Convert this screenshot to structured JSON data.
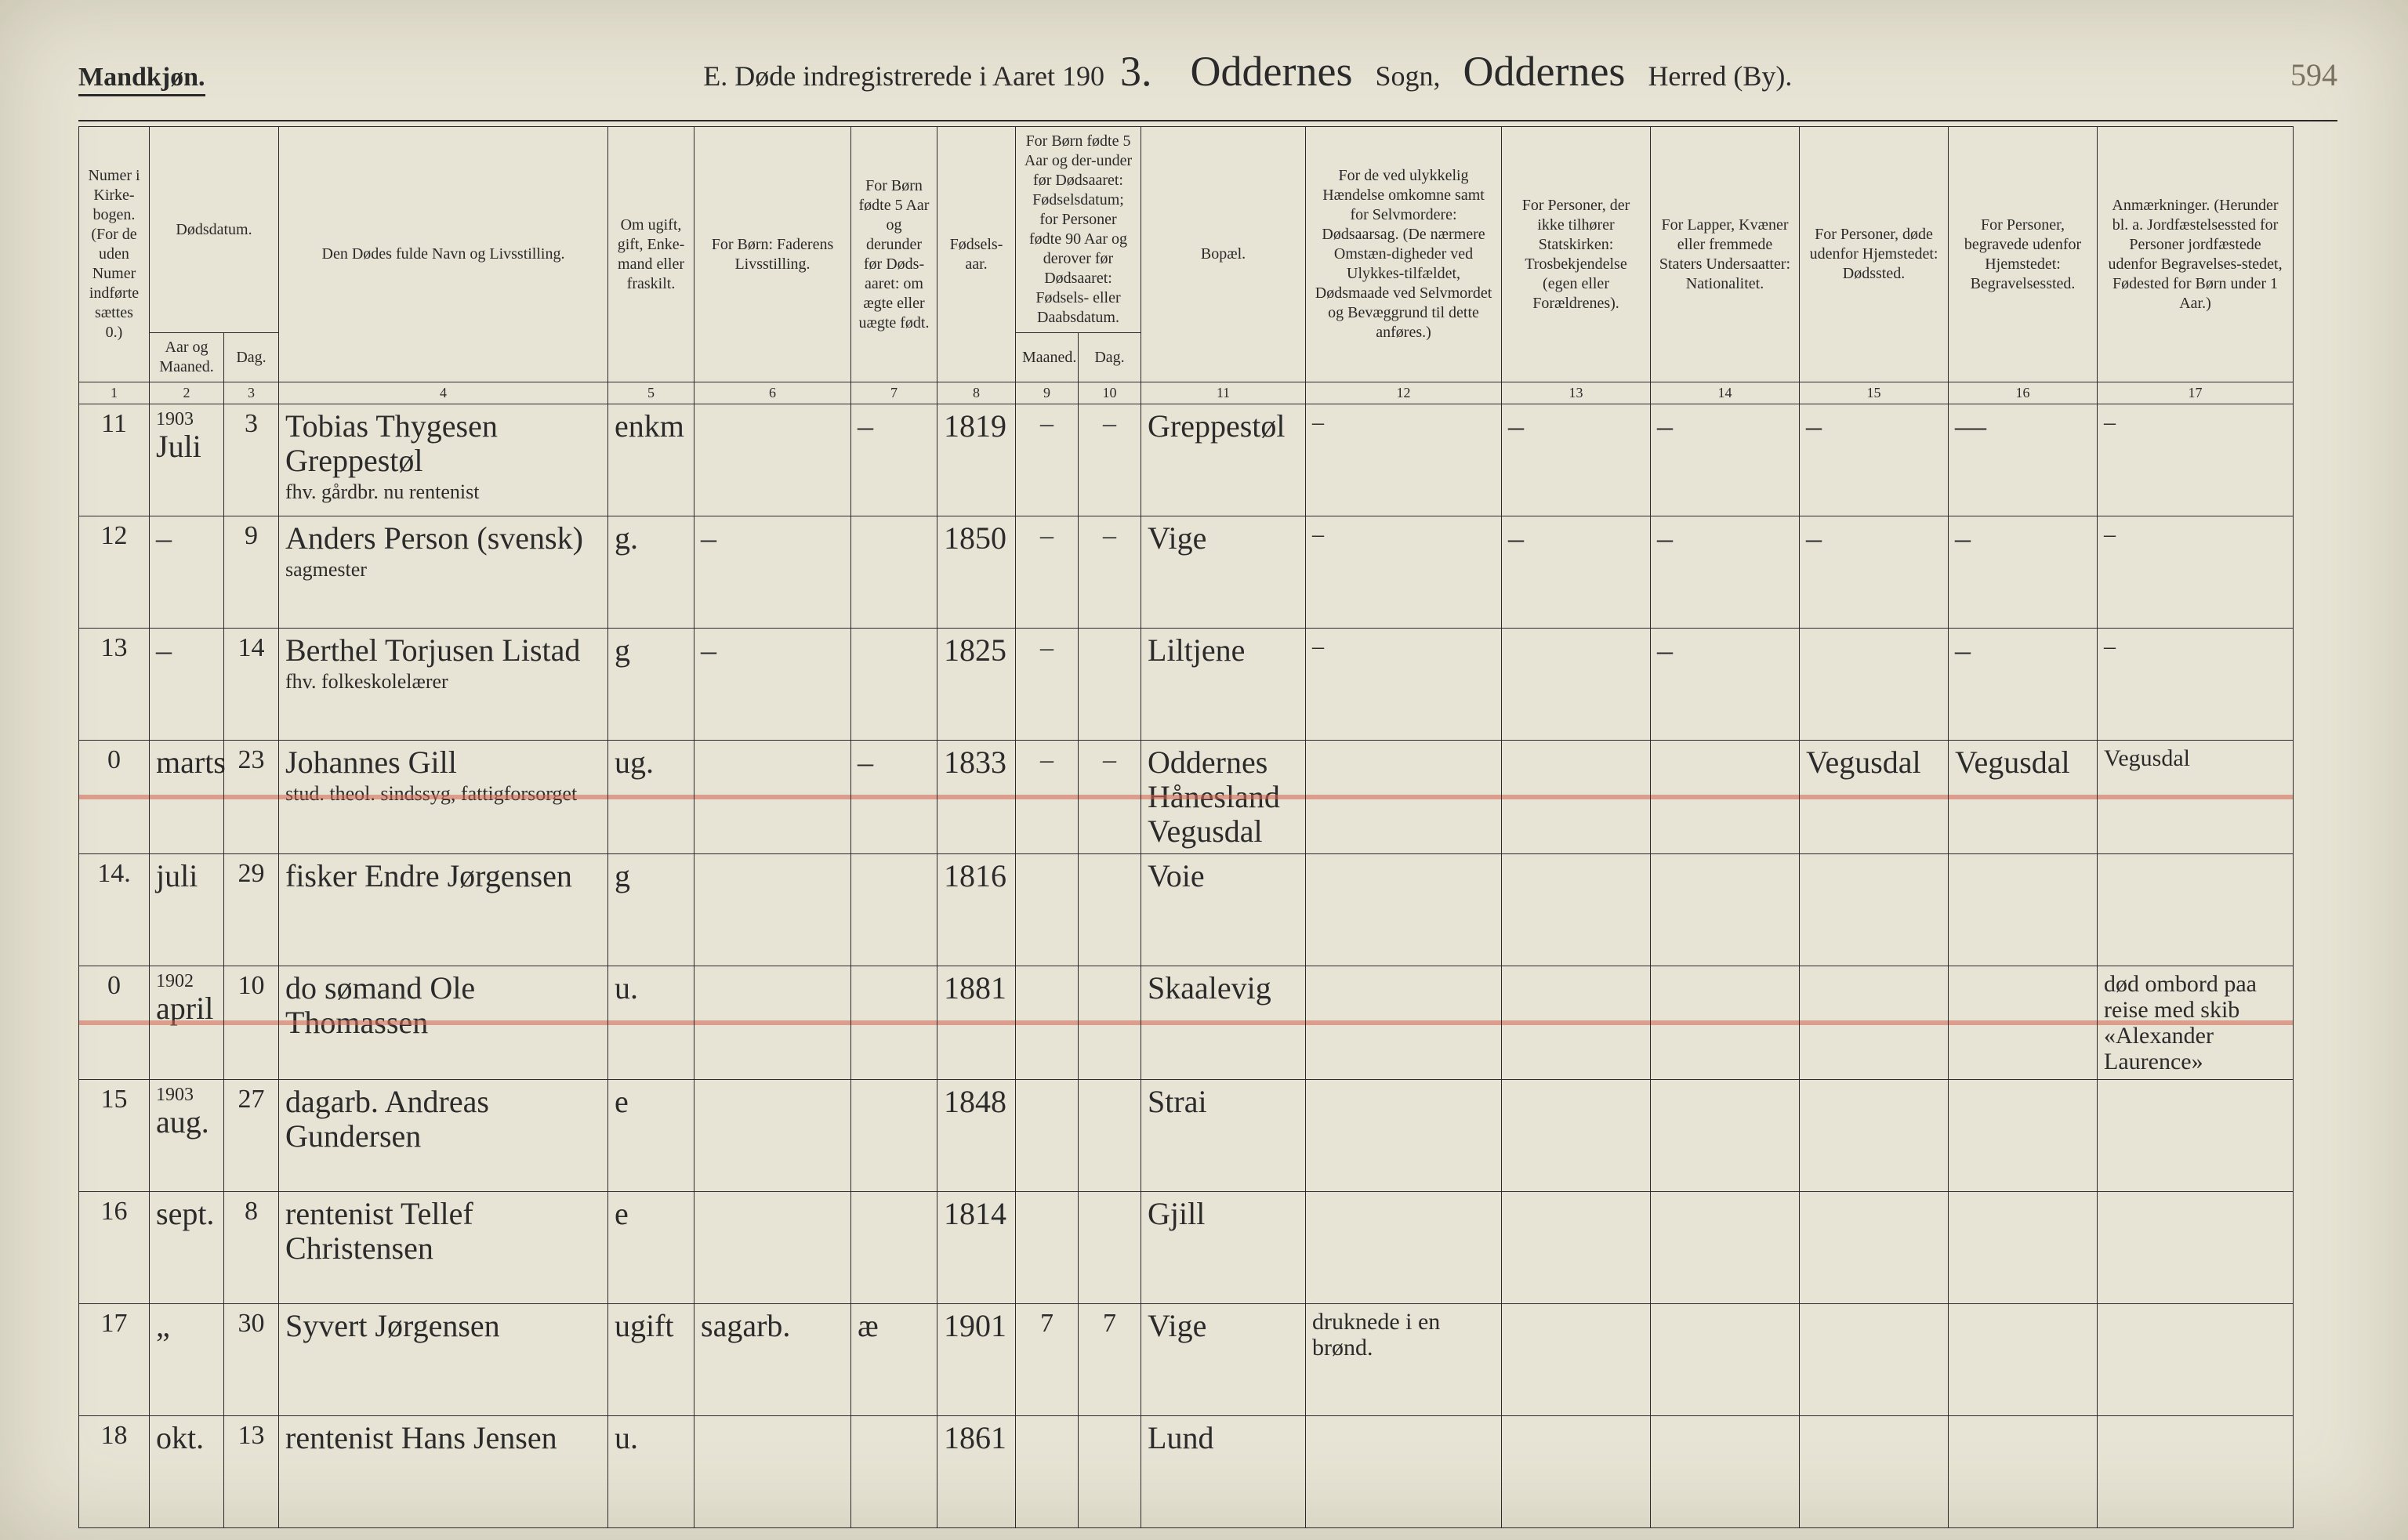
{
  "folio": "594",
  "gender_heading": "Mandkjøn.",
  "title": {
    "lead": "E.  Døde indregistrerede i Aaret 190",
    "year_suffix": "3.",
    "sogn_value": "Oddernes",
    "sogn_label": "Sogn,",
    "herred_value": "Oddernes",
    "herred_label": "Herred (By)."
  },
  "table": {
    "background_color": "#e8e4d5",
    "ink_color": "#2a2a2a",
    "strike_color": "rgba(210,100,80,0.55)",
    "font_family_printed": "Georgia, 'Times New Roman', serif",
    "font_family_handwritten": "'Segoe Script','Brush Script MT',cursive"
  },
  "headers": {
    "c1": "Numer i Kirke-bogen. (For de uden Numer indførte sættes 0.)",
    "c2_3_group": "Dødsdatum.",
    "c2": "Aar og Maaned.",
    "c3": "Dag.",
    "c4": "Den Dødes fulde Navn og Livsstilling.",
    "c5": "Om ugift, gift, Enke-mand eller fraskilt.",
    "c6": "For Børn: Faderens Livsstilling.",
    "c7": "For Børn fødte 5 Aar og derunder før Døds-aaret: om ægte eller uægte født.",
    "c8": "Fødsels-aar.",
    "c9_10_group": "For Børn fødte 5 Aar og der-under før Dødsaaret: Fødselsdatum; for Personer fødte 90 Aar og derover før Dødsaaret: Fødsels- eller Daabsdatum.",
    "c9": "Maaned.",
    "c10": "Dag.",
    "c11": "Bopæl.",
    "c12": "For de ved ulykkelig Hændelse omkomne samt for Selvmordere: Dødsaarsag. (De nærmere Omstæn-digheder ved Ulykkes-tilfældet, Dødsmaade ved Selvmordet og Bevæggrund til dette anføres.)",
    "c13": "For Personer, der ikke tilhører Statskirken: Trosbekjendelse (egen eller Forældrenes).",
    "c14": "For Lapper, Kvæner eller fremmede Staters Undersaatter: Nationalitet.",
    "c15": "For Personer, døde udenfor Hjemstedet: Dødssted.",
    "c16": "For Personer, begravede udenfor Hjemstedet: Begravelsessted.",
    "c17": "Anmærkninger. (Herunder bl. a. Jordfæstelsessted for Personer jordfæstede udenfor Begravelses-stedet, Fødested for Børn under 1 Aar.)"
  },
  "col_nums": [
    "1",
    "2",
    "3",
    "4",
    "5",
    "6",
    "7",
    "8",
    "9",
    "10",
    "11",
    "12",
    "13",
    "14",
    "15",
    "16",
    "17"
  ],
  "rows": [
    {
      "num": "11",
      "year_note": "1903",
      "maaned": "Juli",
      "dag": "3",
      "name": "Tobias Thygesen Greppestøl",
      "name_sub": "fhv. gårdbr. nu rentenist",
      "status": "enkm",
      "father": "",
      "legit": "–",
      "birth": "1819",
      "bm": "–",
      "bd": "–",
      "bosted": "Greppestøl",
      "cause": "–",
      "c13": "–",
      "c14": "–",
      "c15": "–",
      "c16": "—",
      "c17": "–",
      "struck": false
    },
    {
      "num": "12",
      "maaned": "–",
      "dag": "9",
      "name": "Anders Person (svensk)",
      "name_sub": "sagmester",
      "status": "g.",
      "father": "–",
      "legit": "",
      "birth": "1850",
      "bm": "–",
      "bd": "–",
      "bosted": "Vige",
      "cause": "–",
      "c13": "–",
      "c14": "–",
      "c15": "–",
      "c16": "–",
      "c17": "–",
      "struck": false
    },
    {
      "num": "13",
      "maaned": "–",
      "dag": "14",
      "name": "Berthel Torjusen Listad",
      "name_sub": "fhv. folkeskolelærer",
      "status": "g",
      "father": "–",
      "legit": "",
      "birth": "1825",
      "bm": "–",
      "bd": "",
      "bosted": "Liltjene",
      "cause": "–",
      "c13": "",
      "c14": "–",
      "c15": "",
      "c16": "–",
      "c17": "–",
      "struck": false
    },
    {
      "num": "0",
      "maaned": "marts",
      "dag": "23",
      "name": "Johannes Gill",
      "name_sub": "stud. theol. sindssyg, fattigforsorget",
      "status": "ug.",
      "father": "",
      "legit": "–",
      "birth": "1833",
      "bm": "–",
      "bd": "–",
      "bosted": "Oddernes Hånesland Vegusdal",
      "cause": "",
      "c13": "",
      "c14": "",
      "c15": "Vegusdal",
      "c16": "Vegusdal",
      "c17": "Vegusdal",
      "struck": true
    },
    {
      "num": "14.",
      "maaned": "juli",
      "dag": "29",
      "name": "fisker Endre Jørgensen",
      "name_sub": "",
      "status": "g",
      "father": "",
      "legit": "",
      "birth": "1816",
      "bm": "",
      "bd": "",
      "bosted": "Voie",
      "cause": "",
      "c13": "",
      "c14": "",
      "c15": "",
      "c16": "",
      "c17": "",
      "struck": false
    },
    {
      "num": "0",
      "year_note": "1902",
      "maaned": "april",
      "dag": "10",
      "name": "do sømand Ole Thomassen",
      "name_sub": "",
      "status": "u.",
      "father": "",
      "legit": "",
      "birth": "1881",
      "bm": "",
      "bd": "",
      "bosted": "Skaalevig",
      "cause": "",
      "c13": "",
      "c14": "",
      "c15": "",
      "c16": "",
      "c17": "død ombord paa reise med skib «Alexander Laurence»",
      "struck": true
    },
    {
      "num": "15",
      "year_note": "1903",
      "maaned": "aug.",
      "dag": "27",
      "name": "dagarb. Andreas Gundersen",
      "name_sub": "",
      "status": "e",
      "father": "",
      "legit": "",
      "birth": "1848",
      "bm": "",
      "bd": "",
      "bosted": "Strai",
      "cause": "",
      "c13": "",
      "c14": "",
      "c15": "",
      "c16": "",
      "c17": "",
      "struck": false
    },
    {
      "num": "16",
      "maaned": "sept.",
      "dag": "8",
      "name": "rentenist Tellef Christensen",
      "name_sub": "",
      "status": "e",
      "father": "",
      "legit": "",
      "birth": "1814",
      "bm": "",
      "bd": "",
      "bosted": "Gjill",
      "cause": "",
      "c13": "",
      "c14": "",
      "c15": "",
      "c16": "",
      "c17": "",
      "struck": false
    },
    {
      "num": "17",
      "maaned": "„",
      "dag": "30",
      "name": "Syvert Jørgensen",
      "name_sub": "",
      "status": "ugift",
      "father": "sagarb.",
      "legit": "æ",
      "birth": "1901",
      "bm": "7",
      "bd": "7",
      "bosted": "Vige",
      "cause": "druknede i en brønd.",
      "c13": "",
      "c14": "",
      "c15": "",
      "c16": "",
      "c17": "",
      "struck": false
    },
    {
      "num": "18",
      "maaned": "okt.",
      "dag": "13",
      "name": "rentenist Hans Jensen",
      "name_sub": "",
      "status": "u.",
      "father": "",
      "legit": "",
      "birth": "1861",
      "bm": "",
      "bd": "",
      "bosted": "Lund",
      "cause": "",
      "c13": "",
      "c14": "",
      "c15": "",
      "c16": "",
      "c17": "",
      "struck": false
    }
  ]
}
